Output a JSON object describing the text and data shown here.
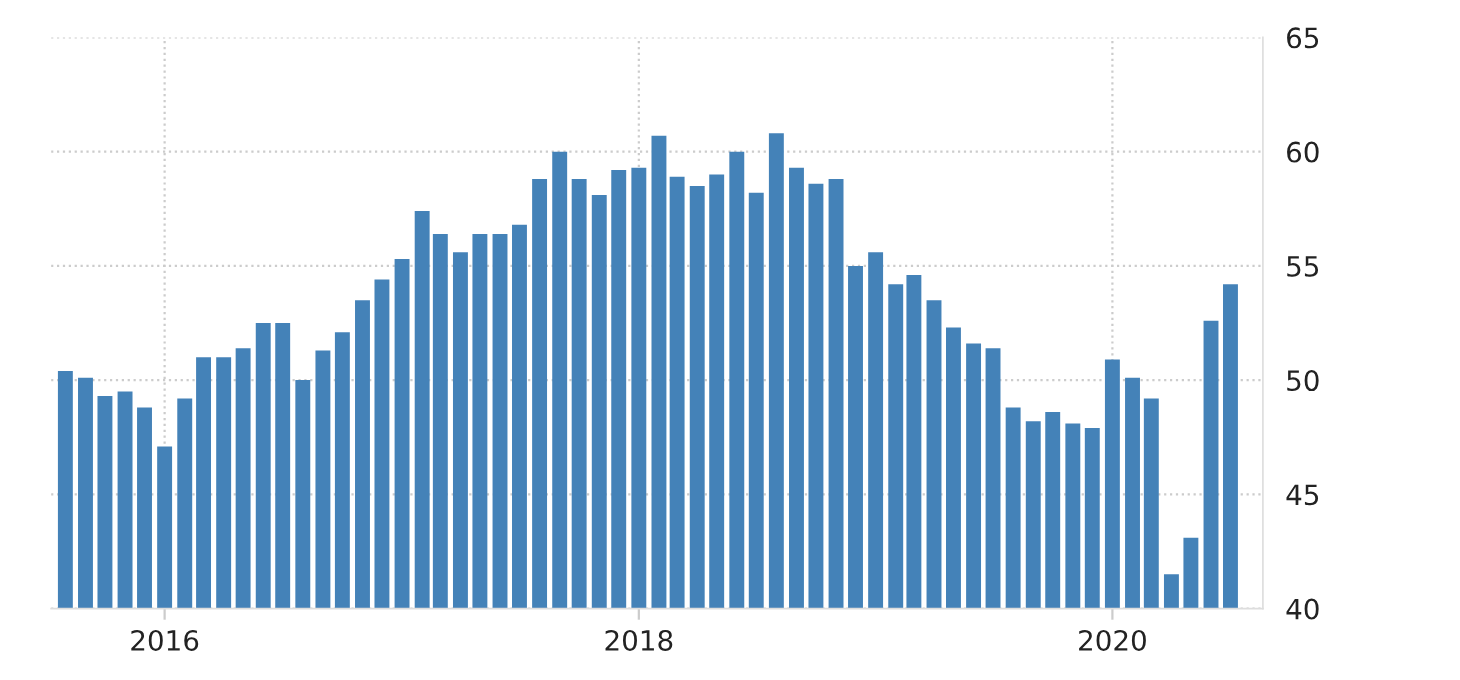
{
  "chart_data": {
    "type": "bar",
    "x": [
      "2015-08",
      "2015-09",
      "2015-10",
      "2015-11",
      "2015-12",
      "2016-01",
      "2016-02",
      "2016-03",
      "2016-04",
      "2016-05",
      "2016-06",
      "2016-07",
      "2016-08",
      "2016-09",
      "2016-10",
      "2016-11",
      "2016-12",
      "2017-01",
      "2017-02",
      "2017-03",
      "2017-04",
      "2017-05",
      "2017-06",
      "2017-07",
      "2017-08",
      "2017-09",
      "2017-10",
      "2017-11",
      "2017-12",
      "2018-01",
      "2018-02",
      "2018-03",
      "2018-04",
      "2018-05",
      "2018-06",
      "2018-07",
      "2018-08",
      "2018-09",
      "2018-10",
      "2018-11",
      "2018-12",
      "2019-01",
      "2019-02",
      "2019-03",
      "2019-04",
      "2019-05",
      "2019-06",
      "2019-07",
      "2019-08",
      "2019-09",
      "2019-10",
      "2019-11",
      "2019-12",
      "2020-01",
      "2020-02",
      "2020-03",
      "2020-04",
      "2020-05",
      "2020-06",
      "2020-07"
    ],
    "values": [
      50.4,
      50.1,
      49.3,
      49.5,
      48.8,
      47.1,
      49.2,
      51.0,
      51.0,
      51.4,
      52.5,
      52.5,
      50.0,
      51.3,
      52.1,
      53.5,
      54.4,
      55.3,
      57.4,
      56.4,
      55.6,
      56.4,
      56.4,
      56.8,
      58.8,
      60.0,
      58.8,
      58.1,
      59.2,
      59.3,
      60.7,
      58.9,
      58.5,
      59.0,
      60.0,
      58.2,
      60.8,
      59.3,
      58.6,
      58.8,
      55.0,
      55.6,
      54.2,
      54.6,
      53.5,
      52.3,
      51.6,
      51.4,
      48.8,
      48.2,
      48.6,
      48.1,
      47.9,
      50.9,
      50.1,
      49.2,
      41.5,
      43.1,
      52.6,
      54.2
    ],
    "color": "#4482b8",
    "xlim": [
      "2015-07-10",
      "2020-08-20"
    ],
    "xticks": [
      {
        "value": "2016-01",
        "label": "2016"
      },
      {
        "value": "2018-01",
        "label": "2018"
      },
      {
        "value": "2020-01",
        "label": "2020"
      }
    ],
    "ylim": [
      40,
      65
    ],
    "yticks": [
      40,
      45,
      50,
      55,
      60,
      65
    ],
    "grid": true
  }
}
